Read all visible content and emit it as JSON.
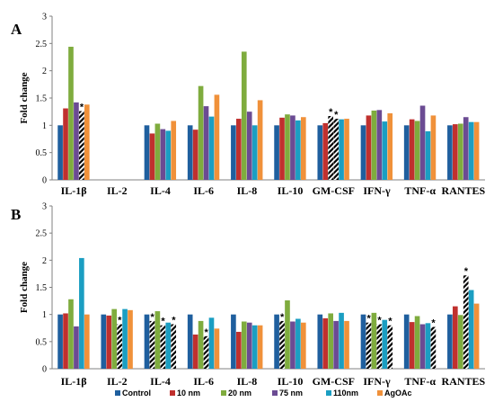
{
  "colors": [
    "#1f5f9e",
    "#c0302e",
    "#7fac3e",
    "#6b4b93",
    "#1b9ec2",
    "#f0913a"
  ],
  "chart_data": [
    {
      "type": "bar",
      "panel_label": "A",
      "ylabel": "Fold change",
      "ylim": [
        0,
        3
      ],
      "yticks": [
        "0",
        "0.5",
        "1",
        "1.5",
        "2",
        "2.5",
        "3"
      ],
      "categories": [
        "IL-1β",
        "IL-2",
        "IL-4",
        "IL-6",
        "IL-8",
        "IL-10",
        "GM-CSF",
        "IFN-γ",
        "TNF-α",
        "RANTES"
      ],
      "series": [
        {
          "name": "Control",
          "values": [
            1,
            null,
            1,
            1,
            1,
            1,
            1,
            1,
            1,
            1
          ]
        },
        {
          "name": "10 nm",
          "values": [
            1.31,
            null,
            0.85,
            0.92,
            1.12,
            1.14,
            1.04,
            1.18,
            1.11,
            1.02
          ]
        },
        {
          "name": "20 nm",
          "values": [
            2.44,
            null,
            1.03,
            1.72,
            2.35,
            1.2,
            1.17,
            1.27,
            1.08,
            1.03
          ]
        },
        {
          "name": "75 nm",
          "values": [
            1.42,
            null,
            0.93,
            1.35,
            1.25,
            1.18,
            1.12,
            1.28,
            1.36,
            1.15
          ]
        },
        {
          "name": "110nm",
          "values": [
            1.26,
            null,
            0.9,
            1.16,
            1.0,
            1.09,
            1.11,
            1.07,
            0.89,
            1.06
          ]
        },
        {
          "name": "AgOAc",
          "values": [
            1.38,
            null,
            1.08,
            1.56,
            1.46,
            1.15,
            1.12,
            1.22,
            1.18,
            1.06
          ]
        }
      ],
      "significant": [
        [
          0,
          4
        ],
        [
          6,
          2
        ],
        [
          6,
          3
        ]
      ]
    },
    {
      "type": "bar",
      "panel_label": "B",
      "ylabel": "Fold change",
      "ylim": [
        0,
        3
      ],
      "yticks": [
        "0",
        "0.5",
        "1",
        "1.5",
        "2",
        "2.5",
        "3"
      ],
      "categories": [
        "IL-1β",
        "IL-2",
        "IL-4",
        "IL-6",
        "IL-8",
        "IL-10",
        "GM-CSF",
        "IFN-γ",
        "TNF-α",
        "RANTES"
      ],
      "series": [
        {
          "name": "Control",
          "values": [
            1,
            1,
            1,
            1,
            1,
            1,
            1,
            1,
            1,
            1
          ]
        },
        {
          "name": "10 nm",
          "values": [
            1.02,
            0.98,
            0.88,
            0.63,
            0.68,
            0.88,
            0.93,
            0.85,
            0.86,
            1.15
          ]
        },
        {
          "name": "20 nm",
          "values": [
            1.28,
            1.1,
            1.06,
            0.88,
            0.87,
            1.26,
            1.02,
            1.03,
            0.97,
            0.99
          ]
        },
        {
          "name": "75 nm",
          "values": [
            0.78,
            0.82,
            0.8,
            0.6,
            0.85,
            0.87,
            0.88,
            0.82,
            0.82,
            1.72
          ]
        },
        {
          "name": "110nm",
          "values": [
            2.04,
            1.1,
            0.85,
            0.94,
            0.8,
            0.92,
            1.03,
            0.9,
            0.84,
            1.45
          ]
        },
        {
          "name": "AgOAc",
          "values": [
            1.0,
            1.08,
            0.82,
            0.74,
            0.8,
            0.85,
            0.88,
            0.8,
            0.77,
            1.2
          ]
        }
      ],
      "significant": [
        [
          1,
          3
        ],
        [
          2,
          1
        ],
        [
          2,
          3
        ],
        [
          2,
          5
        ],
        [
          3,
          3
        ],
        [
          5,
          1
        ],
        [
          7,
          1
        ],
        [
          7,
          3
        ],
        [
          7,
          5
        ],
        [
          8,
          5
        ],
        [
          9,
          3
        ]
      ]
    }
  ]
}
